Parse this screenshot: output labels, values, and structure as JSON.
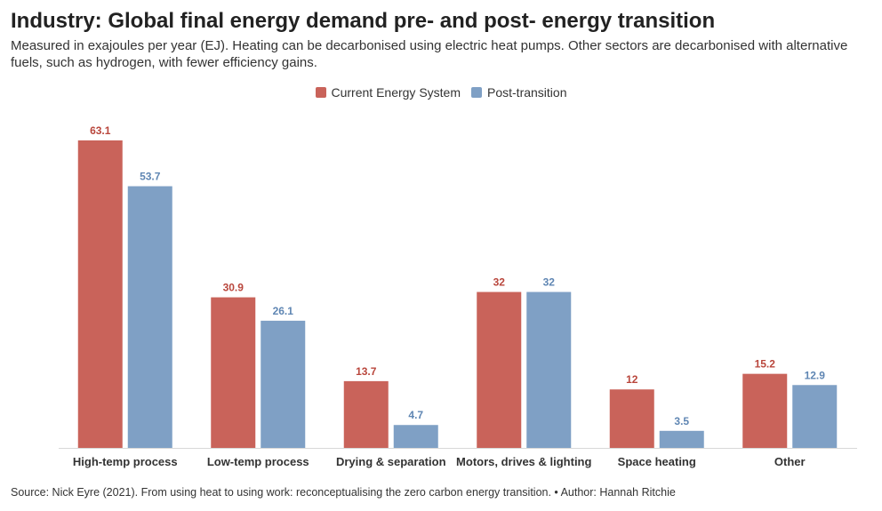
{
  "header": {
    "title": "Industry: Global final energy demand pre- and post- energy transition",
    "subtitle": "Measured in exajoules per year (EJ). Heating can be decarbonised using electric heat pumps. Other sectors are decarbonised with alternative fuels, such as hydrogen, with fewer efficiency gains."
  },
  "colors": {
    "current": "#c9635a",
    "post": "#7fa0c5"
  },
  "chart_data": {
    "type": "bar",
    "categories": [
      "High-temp process",
      "Low-temp process",
      "Drying & separation",
      "Motors, drives & lighting",
      "Space heating",
      "Other"
    ],
    "series": [
      {
        "name": "Current Energy System",
        "values": [
          63.1,
          30.9,
          13.7,
          32,
          12,
          15.2
        ]
      },
      {
        "name": "Post-transition",
        "values": [
          53.7,
          26.1,
          4.7,
          32,
          3.5,
          12.9
        ]
      }
    ],
    "ylim": [
      0,
      63.1
    ],
    "legend": "top-center",
    "grid": false
  },
  "footer": {
    "source": "Source: Nick Eyre (2021). From using heat to using work: reconceptualising the zero carbon energy transition. • Author: Hannah Ritchie"
  }
}
